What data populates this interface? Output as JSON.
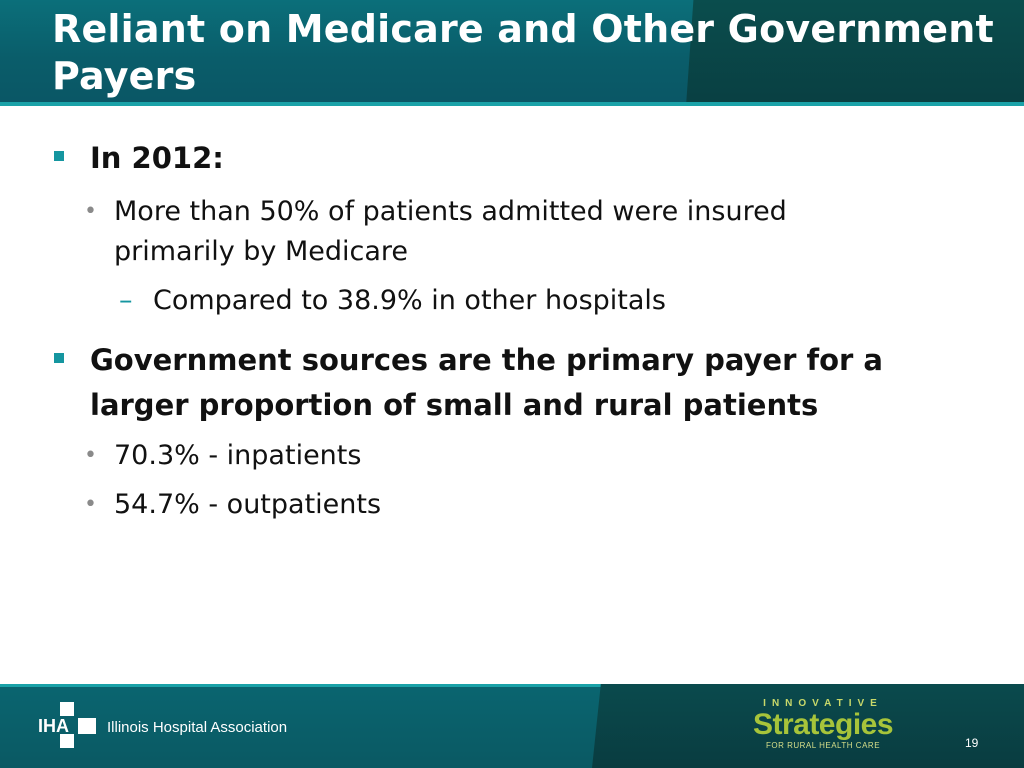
{
  "header": {
    "title": "Reliant on Medicare and Other Government Payers"
  },
  "bullets": {
    "b1": "In 2012:",
    "b1_sub1": "More than 50% of patients admitted were insured primarily by Medicare",
    "b1_sub1_sub1": "Compared to 38.9% in other hospitals",
    "b2": "Government sources are the primary payer for a larger proportion of small and rural patients",
    "b2_sub1": "70.3% - inpatients",
    "b2_sub2": "54.7% - outpatients"
  },
  "markers": {
    "level1": "▪",
    "level2": "•",
    "level3": "–"
  },
  "footer": {
    "logo_text": "IHA",
    "org_name": "Illinois Hospital Association",
    "innovative": "INNOVATIVE",
    "strategies": "Strategies",
    "tagline": "FOR RURAL HEALTH CARE",
    "page_number": "19"
  },
  "colors": {
    "header_teal": "#0a5d6a",
    "accent_teal": "#1596a0",
    "strategies_green": "#a7c43a"
  },
  "icons": [
    "iha-logo-icon",
    "square-bullet-icon"
  ]
}
